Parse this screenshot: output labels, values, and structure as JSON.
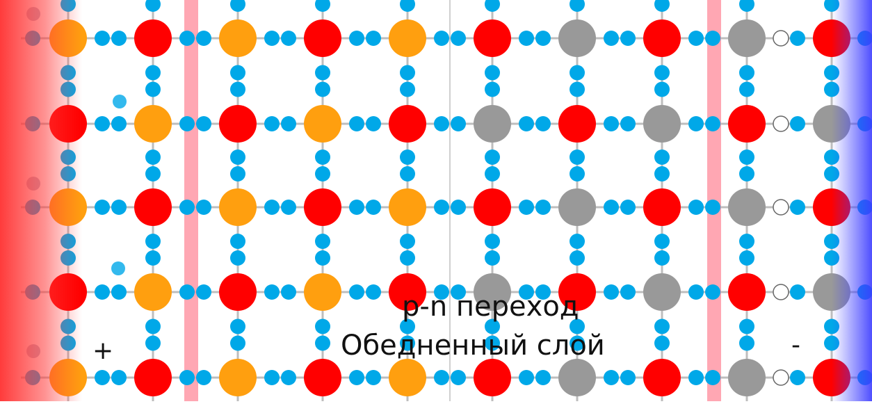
{
  "labels": {
    "pn_junction": "p-n переход",
    "depletion_layer": "Обедненный слой",
    "plus": "+",
    "minus": "-"
  },
  "colors": {
    "acceptor_atom": "#ff9f0f",
    "donor_ion_red": "#ff0000",
    "neutral_gray": "#999999",
    "electron": "#00a8e8",
    "hole_outline": "#666666",
    "lattice_line": "#bdbdbd",
    "junction_boundary": "#ff8a99",
    "positive_electrode": "#ff3b3b",
    "negative_electrode": "#3b3bff"
  },
  "lattice": {
    "rows": [
      [
        "acceptor",
        "red",
        "acceptor",
        "red",
        "acceptor",
        "red",
        "gray",
        "red",
        "gray",
        "red"
      ],
      [
        "red",
        "acceptor",
        "red",
        "acceptor",
        "red",
        "gray",
        "red",
        "gray",
        "red",
        "gray"
      ],
      [
        "acceptor",
        "red",
        "acceptor",
        "red",
        "acceptor",
        "red",
        "gray",
        "red",
        "gray",
        "red"
      ],
      [
        "red",
        "acceptor",
        "red",
        "acceptor",
        "red",
        "gray",
        "red",
        "gray",
        "red",
        "gray"
      ],
      [
        "acceptor",
        "red",
        "acceptor",
        "red",
        "acceptor",
        "red",
        "gray",
        "red",
        "gray",
        "red"
      ]
    ]
  }
}
